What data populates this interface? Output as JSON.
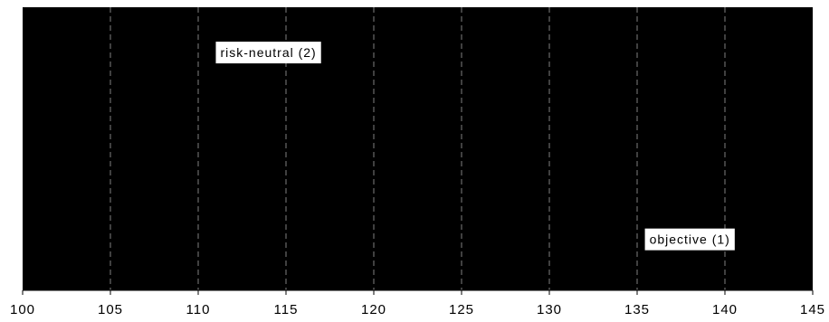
{
  "chart_data": {
    "type": "area",
    "title": "",
    "xlabel": "",
    "ylabel": "",
    "xlim": [
      100,
      145
    ],
    "x_ticks": [
      100,
      105,
      110,
      115,
      120,
      125,
      130,
      135,
      140,
      145
    ],
    "x_tick_labels": [
      "100",
      "105",
      "110",
      "115",
      "120",
      "125",
      "130",
      "135",
      "140",
      "145"
    ],
    "grid": "vertical-dashed",
    "legend": "none",
    "colors": {
      "plot_fill": "#000000",
      "gridline": "#808080",
      "label_box": "#ffffff",
      "text": "#000000"
    },
    "annotations": [
      {
        "text": "risk-neutral (2)",
        "x": 114,
        "y_fraction": 0.84
      },
      {
        "text": "objective (1)",
        "x": 138,
        "y_fraction": 0.18
      }
    ]
  }
}
